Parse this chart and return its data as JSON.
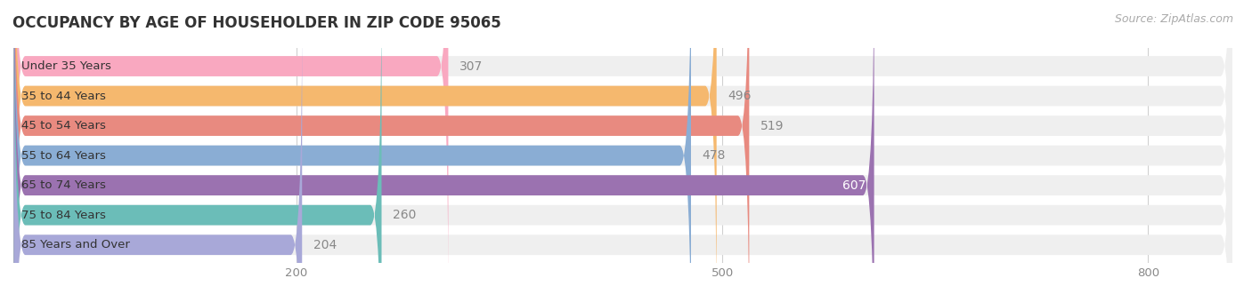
{
  "title": "OCCUPANCY BY AGE OF HOUSEHOLDER IN ZIP CODE 95065",
  "source": "Source: ZipAtlas.com",
  "categories": [
    "Under 35 Years",
    "35 to 44 Years",
    "45 to 54 Years",
    "55 to 64 Years",
    "65 to 74 Years",
    "75 to 84 Years",
    "85 Years and Over"
  ],
  "values": [
    307,
    496,
    519,
    478,
    607,
    260,
    204
  ],
  "bar_colors": [
    "#F9A8C0",
    "#F5B86E",
    "#E88A80",
    "#8AADD4",
    "#9B72B0",
    "#6BBDB8",
    "#A8A8D8"
  ],
  "bar_bg_color": "#EFEFEF",
  "xlim": [
    0,
    860
  ],
  "xticks": [
    200,
    500,
    800
  ],
  "title_fontsize": 12,
  "source_fontsize": 9,
  "bar_label_fontsize": 10,
  "category_fontsize": 9.5,
  "background_color": "#FFFFFF",
  "bar_height": 0.68,
  "inside_label_threshold": 540
}
